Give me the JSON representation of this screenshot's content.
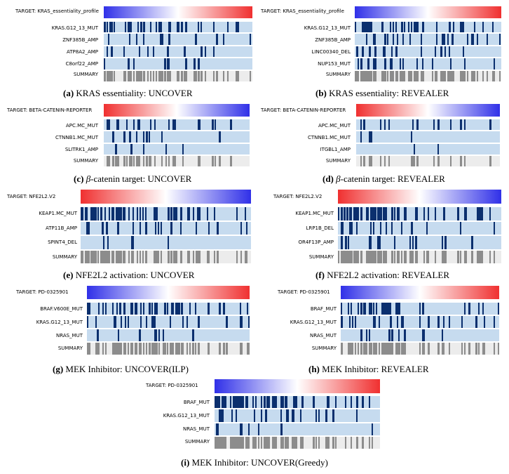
{
  "colors": {
    "blue": "#3030e8",
    "red": "#f03030",
    "mut": "#0b2f6e",
    "sumMark": "#8c8c8c",
    "rowBg": "#c6dbef",
    "sumBg": "#ececec"
  },
  "panels": [
    {
      "id": "a",
      "target": "TARGET:  KRAS_essentiality_profile",
      "gradient": "blue-red",
      "rows": [
        "KRAS.G12_13_MUT",
        "ZNF385B_AMP",
        "ATP8A2_AMP",
        "C8orf22_AMP",
        "SUMMARY"
      ],
      "caption_letter": "(a)",
      "caption_text": "KRAS essentiality: UNCOVER"
    },
    {
      "id": "b",
      "target": "TARGET:  KRAS_essentiality_profile",
      "gradient": "blue-red",
      "rows": [
        "KRAS.G12_13_MUT",
        "ZNF385B_AMP",
        "LINC00340_DEL",
        "NUP153_MUT",
        "SUMMARY"
      ],
      "caption_letter": "(b)",
      "caption_text": "KRAS essentiality: REVEALER"
    },
    {
      "id": "c",
      "target": "TARGET:  BETA-CATENIN-REPORTER",
      "gradient": "red-blue",
      "rows": [
        "APC.MC_MUT",
        "CTNNB1.MC_MUT",
        "SLITRK1_AMP",
        "SUMMARY"
      ],
      "caption_letter": "(c)",
      "caption_greek": "β",
      "caption_text": "-catenin target: UNCOVER"
    },
    {
      "id": "d",
      "target": "TARGET:  BETA-CATENIN-REPORTER",
      "gradient": "red-blue",
      "rows": [
        "APC.MC_MUT",
        "CTNNB1.MC_MUT",
        "ITGBL1_AMP",
        "SUMMARY"
      ],
      "caption_letter": "(d)",
      "caption_greek": "β",
      "caption_text": "-catenin target: REVEALER"
    },
    {
      "id": "e",
      "target": "TARGET:  NFE2L2.V2",
      "gradient": "red-blue",
      "rows": [
        "KEAP1.MC_MUT",
        "ATP11B_AMP",
        "SPINT4_DEL",
        "SUMMARY"
      ],
      "caption_letter": "(e)",
      "caption_text": "NFE2L2 activation: UNCOVER"
    },
    {
      "id": "f",
      "target": "TARGET:  NFE2L2.V2",
      "gradient": "red-blue",
      "rows": [
        "KEAP1.MC_MUT",
        "LRP1B_DEL",
        "OR4F13P_AMP",
        "SUMMARY"
      ],
      "caption_letter": "(f)",
      "caption_text": "NFE2L2 activation: REVEALER"
    },
    {
      "id": "g",
      "target": "TARGET:  PD-0325901",
      "gradient": "blue-red",
      "rows": [
        "BRAF.V600E_MUT",
        "KRAS.G12_13_MUT",
        "NRAS_MUT",
        "SUMMARY"
      ],
      "caption_letter": "(g)",
      "caption_text": "MEK Inhibitor: UNCOVER(ILP)"
    },
    {
      "id": "h",
      "target": "TARGET:  PD-0325901",
      "gradient": "blue-red",
      "rows": [
        "BRAF_MUT",
        "KRAS.G12_13_MUT",
        "NRAS_MUT",
        "SUMMARY"
      ],
      "caption_letter": "(h)",
      "caption_text": "MEK Inhibitor: REVEALER"
    },
    {
      "id": "i",
      "target": "TARGET:  PD-0325901",
      "gradient": "blue-red",
      "rows": [
        "BRAF_MUT",
        "KRAS.G12_13_MUT",
        "NRAS_MUT",
        "SUMMARY"
      ],
      "caption_letter": "(i)",
      "caption_text": "MEK Inhibitor: UNCOVER(Greedy)"
    }
  ]
}
